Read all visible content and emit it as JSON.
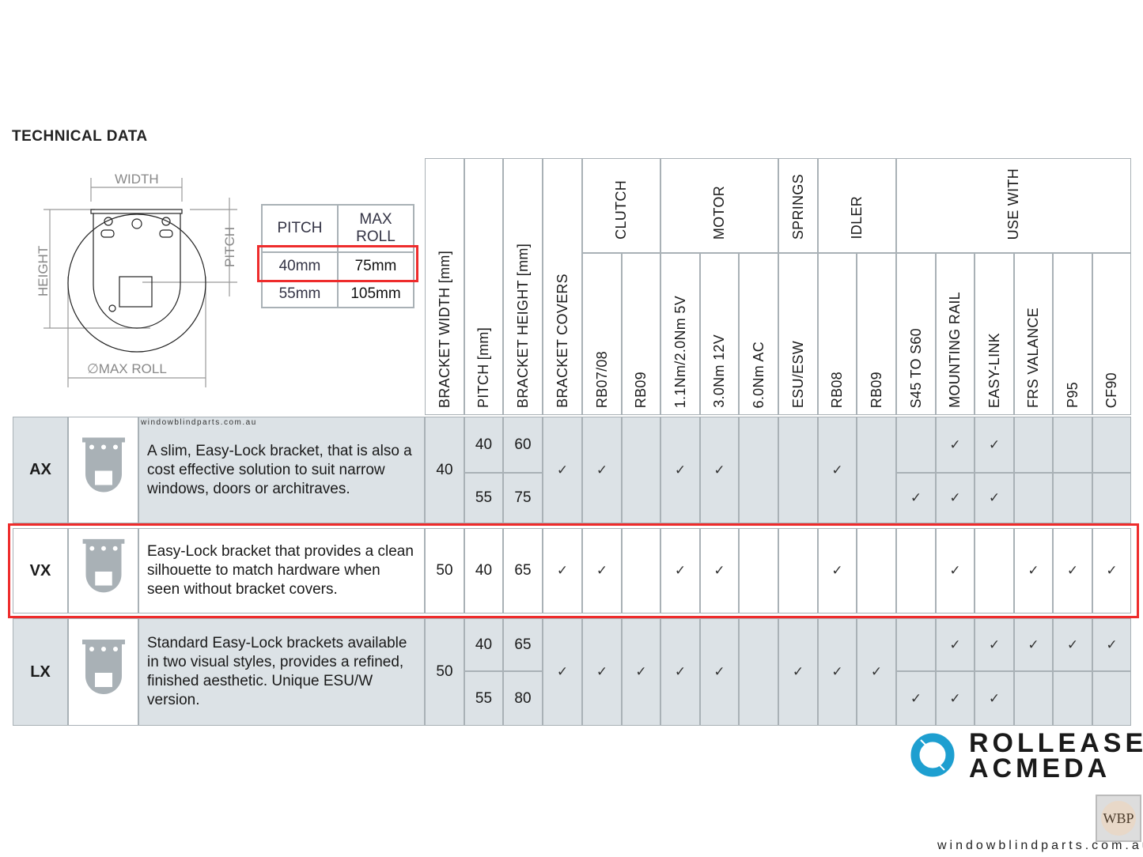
{
  "title": "TECHNICAL DATA",
  "diagram": {
    "width": "WIDTH",
    "height": "HEIGHT",
    "pitch": "PITCH",
    "max_roll": "∅MAX ROLL"
  },
  "pitch_table": {
    "headers": [
      "PITCH",
      "MAX ROLL"
    ],
    "rows": [
      [
        "40mm",
        "75mm"
      ],
      [
        "55mm",
        "105mm"
      ]
    ],
    "highlighted_row": 0
  },
  "columns": [
    "BRACKET WIDTH [mm]",
    "PITCH [mm]",
    "BRACKET HEIGHT [mm]",
    "BRACKET COVERS",
    "RB07/08",
    "RB09",
    "1.1Nm/2.0Nm 5V",
    "3.0Nm 12V",
    "6.0Nm AC",
    "ESU/ESW",
    "RB08",
    "RB09",
    "S45 TO S60",
    "MOUNTING RAIL",
    "EASY-LINK",
    "FRS VALANCE",
    "P95",
    "CF90"
  ],
  "groups": [
    {
      "label": "CLUTCH",
      "start": 4,
      "span": 2
    },
    {
      "label": "MOTOR",
      "start": 6,
      "span": 3
    },
    {
      "label": "SPRINGS",
      "start": 9,
      "span": 1
    },
    {
      "label": "IDLER",
      "start": 10,
      "span": 2
    },
    {
      "label": "USE WITH",
      "start": 12,
      "span": 6
    }
  ],
  "check": "✓",
  "watermark": "windowblindparts.com.au",
  "rows": [
    {
      "code": "AX",
      "desc": "A slim, Easy-Lock bracket, that is also a cost effective solution to suit narrow windows, doors or architraves.",
      "style": "gray",
      "highlighted": false,
      "values": [
        "40",
        [
          "40",
          "55"
        ],
        [
          "60",
          "75"
        ],
        "✓",
        "✓",
        "",
        "✓",
        "✓",
        "",
        "",
        "✓",
        "",
        [
          "",
          "✓"
        ],
        [
          "✓",
          "✓"
        ],
        [
          "✓",
          "✓"
        ],
        [
          "",
          ""
        ],
        [
          "",
          ""
        ],
        [
          "",
          ""
        ]
      ]
    },
    {
      "code": "VX",
      "desc": "Easy-Lock bracket that provides a clean silhouette to match hardware when seen without bracket covers.",
      "style": "white",
      "highlighted": true,
      "values": [
        "50",
        "40",
        "65",
        "✓",
        "✓",
        "",
        "✓",
        "✓",
        "",
        "",
        "✓",
        "",
        "",
        "✓",
        "",
        "✓",
        "✓",
        "✓"
      ]
    },
    {
      "code": "LX",
      "desc": "Standard Easy-Lock brackets available in two visual styles, provides a refined, finished aesthetic. Unique ESU/W version.",
      "style": "gray",
      "highlighted": false,
      "values": [
        "50",
        [
          "40",
          "55"
        ],
        [
          "65",
          "80"
        ],
        "✓",
        "✓",
        "✓",
        "✓",
        "✓",
        "",
        "✓",
        "✓",
        "✓",
        [
          "",
          "✓"
        ],
        [
          "✓",
          "✓"
        ],
        [
          "✓",
          "✓"
        ],
        [
          "✓",
          ""
        ],
        [
          "✓",
          ""
        ],
        [
          "✓",
          ""
        ]
      ]
    }
  ],
  "brand": {
    "line1": "ROLLEASE",
    "line2": "ACMEDA",
    "ring_color": "#1e9fd0"
  },
  "footer": {
    "badge": "WBP",
    "site": "windowblindparts.com.au"
  },
  "colors": {
    "highlight": "#ee2c2c",
    "row_bg": "#dce2e6",
    "border": "#a9b1b6"
  }
}
